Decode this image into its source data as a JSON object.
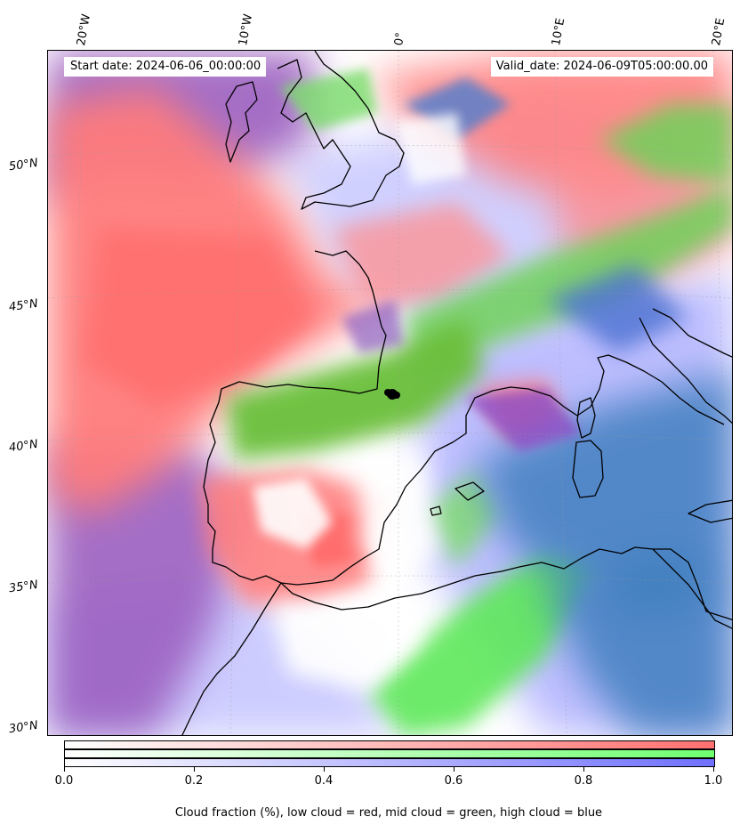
{
  "map": {
    "start_date_label": "Start date: 2024-06-06_00:00:00",
    "valid_date_label": "Valid_date: 2024-06-09T05:00:00.00",
    "lon_labels": [
      "20°W",
      "10°W",
      "0°",
      "10°E",
      "20°E"
    ],
    "lat_labels": [
      "50°N",
      "45°N",
      "40°N",
      "35°N",
      "30°N"
    ],
    "colors": {
      "low_cloud": "#ff7b7b",
      "mid_cloud": "#6fd25a",
      "high_cloud": "#5a5aff",
      "mixed_low_high": "#9b5fc0",
      "mixed_mid_high": "#3f7fbf",
      "coastline": "#000000",
      "marker": "#000000"
    }
  },
  "colorbar": {
    "ticks": [
      "0.0",
      "0.2",
      "0.4",
      "0.6",
      "0.8",
      "1.0"
    ],
    "caption": "Cloud fraction (%), low cloud = red, mid cloud = green, high cloud = blue",
    "colors": {
      "red_end": "#ff7070",
      "green_end": "#70ff70",
      "blue_end": "#7070ff"
    }
  }
}
